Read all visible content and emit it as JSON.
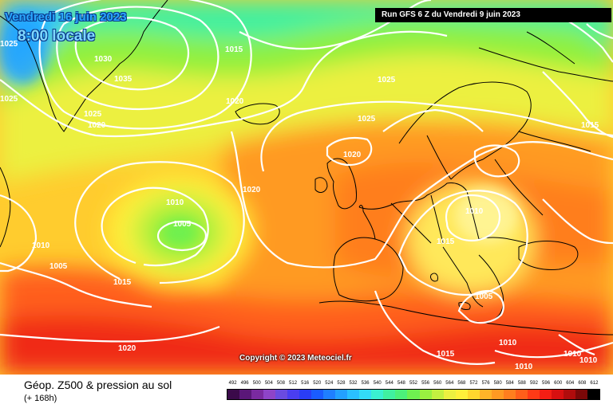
{
  "header": {
    "date": "Vendredi 16 juin 2023",
    "time": "8:00 locale",
    "run": "Run GFS 6 Z du Vendredi 9 juin 2023"
  },
  "copyright": "Copyright © 2023 Meteociel.fr",
  "legend": {
    "title": "Géop. Z500 & pression au sol",
    "subtitle": "(+ 168h)",
    "scale_values": [
      "492",
      "496",
      "500",
      "504",
      "508",
      "512",
      "516",
      "520",
      "524",
      "528",
      "532",
      "536",
      "540",
      "544",
      "548",
      "552",
      "556",
      "560",
      "564",
      "568",
      "572",
      "576",
      "580",
      "584",
      "588",
      "592",
      "596",
      "600",
      "604",
      "608",
      "612"
    ],
    "scale_colors": [
      "#3b0a4a",
      "#5a1778",
      "#7a2aa0",
      "#8e44c8",
      "#6a4be0",
      "#4a3ef0",
      "#2a3df5",
      "#1a5cff",
      "#1f7fff",
      "#23a0ff",
      "#2ac0ff",
      "#33dbf6",
      "#3af0d0",
      "#40f0a0",
      "#4cf07a",
      "#6ef050",
      "#99f040",
      "#c4f040",
      "#ecf040",
      "#fff03a",
      "#ffd72e",
      "#ffb428",
      "#ff9a22",
      "#ff7e1e",
      "#ff5e1a",
      "#ff3a16",
      "#f51e14",
      "#d81010",
      "#b00c0c",
      "#7a0808",
      "#000000"
    ]
  },
  "pressure_labels": [
    "1025",
    "1030",
    "1035",
    "1015",
    "1025",
    "1020",
    "1025",
    "1020",
    "1025",
    "1025",
    "1015",
    "1020",
    "1020",
    "1010",
    "1005",
    "1010",
    "1010",
    "1005",
    "1015",
    "1015",
    "1005",
    "1020",
    "1015",
    "1010",
    "1010",
    "1010",
    "1010"
  ],
  "colors": {
    "isobar": "#ffffff",
    "coastline": "#000000"
  }
}
